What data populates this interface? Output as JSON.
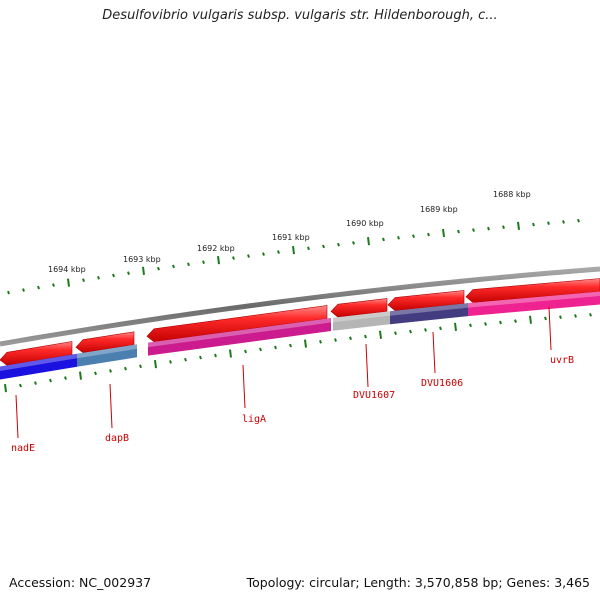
{
  "title": "Desulfovibrio vulgaris subsp. vulgaris str. Hildenborough, c...",
  "footer": {
    "accession": "Accession: NC_002937",
    "topology": "Topology: circular; Length: 3,570,858 bp; Genes: 3,465"
  },
  "ruler_ticks": [
    "1694 kbp",
    "1693 kbp",
    "1692 kbp",
    "1691 kbp",
    "1690 kbp",
    "1689 kbp",
    "1688 kbp"
  ],
  "genes": [
    {
      "name": "nadE",
      "color": "#1a10e0"
    },
    {
      "name": "dapB",
      "color": "#4a7fb0"
    },
    {
      "name": "ligA",
      "color": "#cc1b8e"
    },
    {
      "name": "DVU1607",
      "color": "#b5b5b5"
    },
    {
      "name": "DVU1606",
      "color": "#443c80"
    },
    {
      "name": "uvrB",
      "color": "#ee2290"
    }
  ],
  "colors": {
    "forward_arrow": "#ee1111",
    "backbone": "#7a7a7a",
    "tick_marks": "#1e7a1e",
    "gene_label": "#cc0000"
  }
}
